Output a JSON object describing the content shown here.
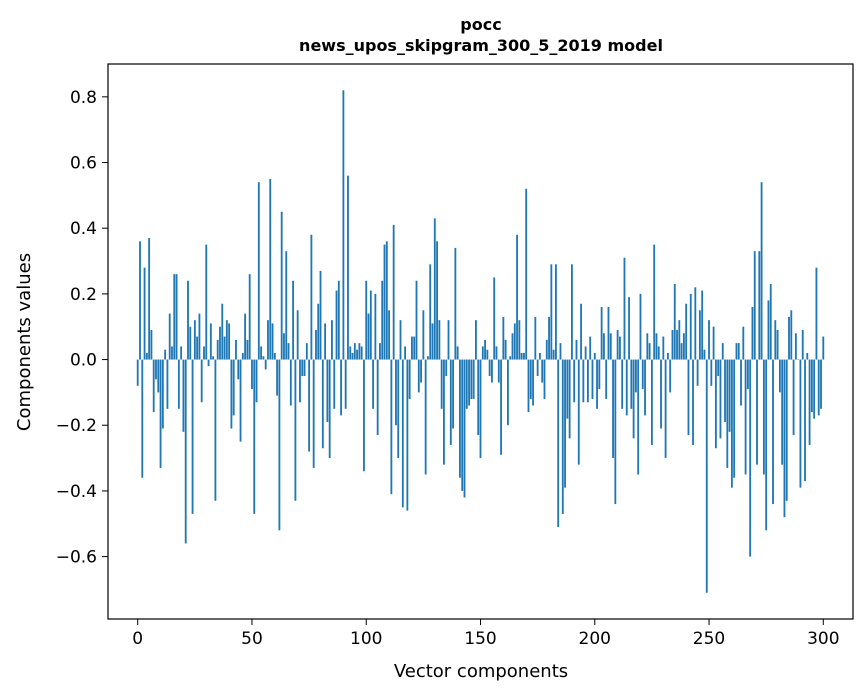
{
  "chart_data": {
    "type": "bar",
    "title": "pocc",
    "subtitle": "news_upos_skipgram_300_5_2019 model",
    "xlabel": "Vector components",
    "ylabel": "Components values",
    "xlim": [
      -13,
      313
    ],
    "ylim": [
      -0.79,
      0.9
    ],
    "xticks": [
      0,
      50,
      100,
      150,
      200,
      250,
      300
    ],
    "yticks": [
      -0.6,
      -0.4,
      -0.2,
      0.0,
      0.2,
      0.4,
      0.6,
      0.8
    ],
    "xtick_labels": [
      "0",
      "50",
      "100",
      "150",
      "200",
      "250",
      "300"
    ],
    "ytick_labels": [
      "−0.6",
      "−0.4",
      "−0.2",
      "0.0",
      "0.2",
      "0.4",
      "0.6",
      "0.8"
    ],
    "grid": false,
    "bar_color": "#1f77b4",
    "values": [
      -0.08,
      0.36,
      -0.36,
      0.28,
      0.02,
      0.37,
      0.09,
      -0.16,
      -0.06,
      -0.1,
      -0.33,
      -0.21,
      0.03,
      -0.15,
      0.14,
      0.04,
      0.26,
      0.26,
      -0.15,
      0.04,
      -0.22,
      -0.56,
      0.24,
      0.1,
      -0.47,
      0.12,
      0.07,
      0.14,
      -0.13,
      0.04,
      0.35,
      -0.02,
      0.11,
      0.01,
      -0.43,
      0.06,
      0.1,
      0.17,
      0.07,
      0.12,
      0.11,
      -0.21,
      -0.17,
      0.06,
      -0.06,
      -0.25,
      0.02,
      0.14,
      0.06,
      0.26,
      -0.09,
      -0.47,
      -0.13,
      0.54,
      0.04,
      0.01,
      -0.03,
      0.12,
      0.55,
      0.11,
      0.02,
      -0.11,
      -0.52,
      0.45,
      0.08,
      0.33,
      0.05,
      -0.14,
      0.24,
      -0.43,
      0.15,
      -0.13,
      -0.05,
      -0.05,
      0.05,
      -0.28,
      0.38,
      -0.33,
      0.09,
      0.17,
      0.27,
      -0.27,
      0.11,
      -0.19,
      -0.3,
      0.12,
      -0.15,
      0.21,
      0.24,
      -0.17,
      0.82,
      -0.15,
      0.56,
      0.04,
      0.02,
      0.05,
      0.03,
      0.05,
      0.04,
      -0.34,
      0.24,
      0.14,
      0.21,
      -0.15,
      0.2,
      -0.23,
      0.05,
      0.24,
      0.35,
      0.36,
      0.15,
      -0.41,
      0.41,
      -0.2,
      -0.3,
      0.12,
      -0.45,
      0.04,
      -0.46,
      -0.12,
      0.07,
      0.07,
      0.24,
      -0.1,
      -0.07,
      0.15,
      -0.35,
      0.01,
      0.29,
      0.11,
      0.43,
      0.36,
      0.12,
      -0.15,
      -0.32,
      -0.05,
      0.12,
      -0.26,
      -0.21,
      0.34,
      0.04,
      -0.36,
      -0.4,
      -0.42,
      -0.15,
      -0.14,
      -0.12,
      -0.12,
      0.12,
      -0.23,
      -0.3,
      0.04,
      0.06,
      0.03,
      -0.05,
      -0.07,
      0.25,
      0.04,
      -0.07,
      -0.29,
      0.13,
      0.06,
      -0.2,
      0.01,
      0.08,
      0.11,
      0.38,
      0.12,
      0.02,
      0.02,
      0.52,
      -0.16,
      -0.12,
      -0.14,
      0.13,
      -0.05,
      0.02,
      -0.07,
      -0.12,
      0.06,
      0.13,
      0.29,
      0.03,
      0.29,
      -0.51,
      0.05,
      -0.47,
      -0.39,
      -0.18,
      -0.24,
      0.29,
      -0.13,
      0.06,
      -0.32,
      0.17,
      -0.13,
      0.04,
      -0.13,
      0.07,
      -0.12,
      0.02,
      -0.15,
      -0.09,
      0.16,
      0.08,
      -0.12,
      0.16,
      0.08,
      -0.3,
      -0.44,
      0.09,
      0.07,
      -0.15,
      0.31,
      -0.17,
      0.19,
      -0.15,
      -0.24,
      -0.1,
      -0.35,
      0.2,
      -0.09,
      -0.17,
      0.08,
      0.05,
      -0.26,
      0.35,
      0.08,
      0.04,
      -0.21,
      0.07,
      -0.3,
      0.02,
      -0.1,
      0.09,
      0.23,
      0.09,
      0.12,
      0.05,
      0.08,
      0.17,
      -0.23,
      0.2,
      -0.26,
      0.22,
      -0.08,
      0.15,
      0.21,
      0.03,
      -0.71,
      0.12,
      -0.08,
      0.1,
      -0.27,
      -0.05,
      -0.24,
      0.05,
      -0.19,
      -0.33,
      -0.22,
      -0.39,
      -0.36,
      0.05,
      0.05,
      -0.14,
      0.1,
      -0.35,
      -0.09,
      -0.6,
      0.16,
      0.33,
      -0.32,
      0.33,
      0.54,
      -0.35,
      -0.52,
      0.18,
      0.23,
      -0.44,
      0.12,
      0.09,
      -0.1,
      -0.32,
      -0.48,
      -0.43,
      0.13,
      0.15,
      -0.23,
      0.08,
      0.0,
      -0.39,
      0.09,
      -0.37,
      0.02,
      -0.26,
      -0.16,
      -0.18,
      0.28,
      -0.17,
      -0.15,
      0.07
    ]
  }
}
